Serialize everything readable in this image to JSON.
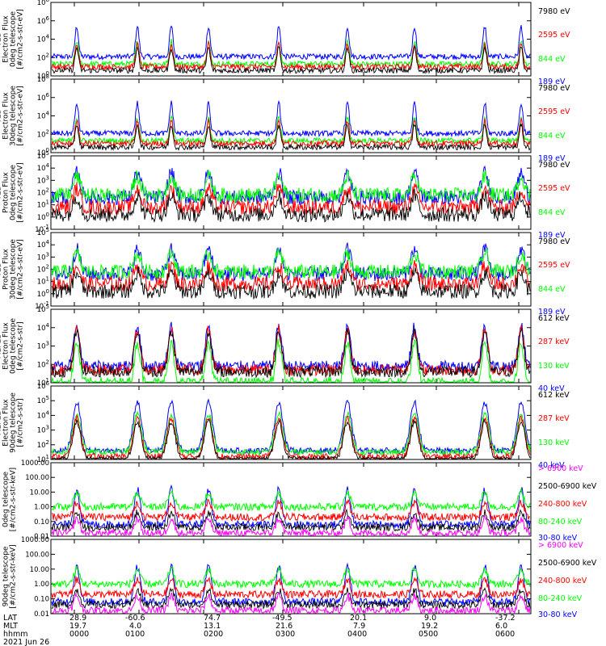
{
  "colors": {
    "black": "#000000",
    "red": "#ff0000",
    "green": "#00ff00",
    "blue": "#0000ff",
    "magenta": "#ff00ff"
  },
  "chart_data": [
    {
      "type": "line",
      "ylabel": "TED Electron Flux 0deg telescope [#/cm2-s-str-eV]",
      "yscale": "log",
      "y_tick_labels": [
        "10^0",
        "10^2",
        "10^4",
        "10^6",
        "10^8"
      ],
      "ylim": [
        1,
        100000000
      ],
      "series": [
        {
          "name": "7980 eV",
          "color": "black"
        },
        {
          "name": "2595 eV",
          "color": "red"
        },
        {
          "name": "844 eV",
          "color": "green"
        },
        {
          "name": "189 eV",
          "color": "blue"
        }
      ]
    },
    {
      "type": "line",
      "ylabel": "TED Electron Flux 30deg telescope [#/cm2-s-str-eV]",
      "yscale": "log",
      "y_tick_labels": [
        "10^0",
        "10^2",
        "10^4",
        "10^6",
        "10^8"
      ],
      "ylim": [
        1,
        100000000
      ],
      "series": [
        {
          "name": "7980 eV",
          "color": "black"
        },
        {
          "name": "2595 eV",
          "color": "red"
        },
        {
          "name": "844 eV",
          "color": "green"
        },
        {
          "name": "189 eV",
          "color": "blue"
        }
      ]
    },
    {
      "type": "line",
      "ylabel": "TED Proton Flux 0deg telescope [#/cm2-s-str-eV]",
      "yscale": "log",
      "y_tick_labels": [
        "10^-1",
        "10^0",
        "10^1",
        "10^2",
        "10^3",
        "10^4",
        "10^5"
      ],
      "ylim": [
        0.1,
        100000
      ],
      "series": [
        {
          "name": "7980 eV",
          "color": "black"
        },
        {
          "name": "2595 eV",
          "color": "red"
        },
        {
          "name": "844 eV",
          "color": "green"
        },
        {
          "name": "189 eV",
          "color": "blue"
        }
      ]
    },
    {
      "type": "line",
      "ylabel": "TED Proton Flux 30deg telescope [#/cm2-s-str-eV]",
      "yscale": "log",
      "y_tick_labels": [
        "10^-1",
        "10^0",
        "10^1",
        "10^2",
        "10^3",
        "10^4",
        "10^5"
      ],
      "ylim": [
        0.1,
        100000
      ],
      "series": [
        {
          "name": "7980 eV",
          "color": "black"
        },
        {
          "name": "2595 eV",
          "color": "red"
        },
        {
          "name": "844 eV",
          "color": "green"
        },
        {
          "name": "189 eV",
          "color": "blue"
        }
      ]
    },
    {
      "type": "line",
      "ylabel": "MEPED Electron Flux 0deg telescope [#/cm2-s-str]",
      "yscale": "log",
      "y_tick_labels": [
        "10^1",
        "10^2",
        "10^3",
        "10^4",
        "10^5"
      ],
      "ylim": [
        10,
        100000
      ],
      "series": [
        {
          "name": "612 keV",
          "color": "black"
        },
        {
          "name": "287 keV",
          "color": "red"
        },
        {
          "name": "130 keV",
          "color": "green"
        },
        {
          "name": "40 keV",
          "color": "blue"
        }
      ]
    },
    {
      "type": "line",
      "ylabel": "MEPED Electron Flux 90deg telescope [#/cm2-s-str]",
      "yscale": "log",
      "y_tick_labels": [
        "10^1",
        "10^2",
        "10^3",
        "10^4",
        "10^5",
        "10^6"
      ],
      "ylim": [
        10,
        1000000
      ],
      "series": [
        {
          "name": "612 keV",
          "color": "black"
        },
        {
          "name": "287 keV",
          "color": "red"
        },
        {
          "name": "130 keV",
          "color": "green"
        },
        {
          "name": "40 keV",
          "color": "blue"
        }
      ]
    },
    {
      "type": "line",
      "ylabel": "0deg telescope [#/cm2-s-str-keV]",
      "yscale": "log",
      "y_tick_labels": [
        "0.01",
        "0.10",
        "1.00",
        "10.00",
        "100.00",
        "1000.00"
      ],
      "ylim": [
        0.01,
        1000
      ],
      "series": [
        {
          "name": "> 6900 keV",
          "color": "magenta"
        },
        {
          "name": "2500-6900 keV",
          "color": "black"
        },
        {
          "name": "240-800 keV",
          "color": "red"
        },
        {
          "name": "80-240 keV",
          "color": "green"
        },
        {
          "name": "30-80 keV",
          "color": "blue"
        }
      ]
    },
    {
      "type": "line",
      "ylabel": "90deg telescope [#/cm2-s-str-keV]",
      "yscale": "log",
      "y_tick_labels": [
        "0.01",
        "0.10",
        "1.00",
        "10.00",
        "100.00",
        "1000.00"
      ],
      "ylim": [
        0.01,
        1000
      ],
      "series": [
        {
          "name": "> 6900 keV",
          "color": "magenta"
        },
        {
          "name": "2500-6900 keV",
          "color": "black"
        },
        {
          "name": "240-800 keV",
          "color": "red"
        },
        {
          "name": "80-240 keV",
          "color": "green"
        },
        {
          "name": "30-80 keV",
          "color": "blue"
        }
      ]
    }
  ],
  "x_axis": {
    "row_labels": [
      "LAT",
      "MLT",
      "hhmm"
    ],
    "columns": [
      {
        "lat": "28.9",
        "mlt": "19.7",
        "hhmm": "0000"
      },
      {
        "lat": "-60.6",
        "mlt": "4.0",
        "hhmm": "0100"
      },
      {
        "lat": "74.7",
        "mlt": "13.1",
        "hhmm": "0200"
      },
      {
        "lat": "-49.5",
        "mlt": "21.6",
        "hhmm": "0300"
      },
      {
        "lat": "20.1",
        "mlt": "7.9",
        "hhmm": "0400"
      },
      {
        "lat": "9.0",
        "mlt": "19.2",
        "hhmm": "0500"
      },
      {
        "lat": "-37.2",
        "mlt": "6.0",
        "hhmm": "0600"
      }
    ],
    "date": "2021 Jun 26"
  }
}
